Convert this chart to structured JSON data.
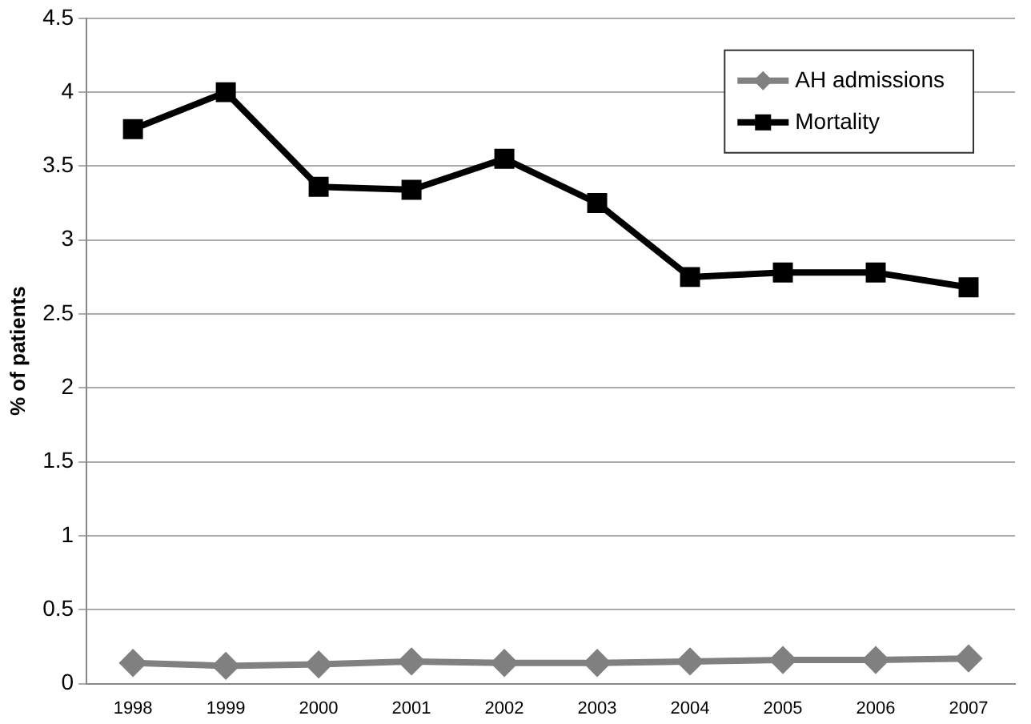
{
  "chart_data": {
    "type": "line",
    "ylabel": "% of patients",
    "categories": [
      "1998",
      "1999",
      "2000",
      "2001",
      "2002",
      "2003",
      "2004",
      "2005",
      "2006",
      "2007"
    ],
    "series": [
      {
        "name": "AH admissions",
        "color": "#808080",
        "marker": "diamond",
        "values": [
          0.14,
          0.12,
          0.13,
          0.15,
          0.14,
          0.14,
          0.15,
          0.16,
          0.16,
          0.17
        ]
      },
      {
        "name": "Mortality",
        "color": "#000000",
        "marker": "square",
        "values": [
          3.75,
          4.0,
          3.36,
          3.34,
          3.55,
          3.25,
          2.75,
          2.78,
          2.78,
          2.68
        ]
      }
    ],
    "ylim": [
      0,
      4.5
    ],
    "yticks": [
      0,
      0.5,
      1,
      1.5,
      2,
      2.5,
      3,
      3.5,
      4,
      4.5
    ],
    "grid": "y",
    "legend": "top right",
    "line_style": "solid"
  }
}
